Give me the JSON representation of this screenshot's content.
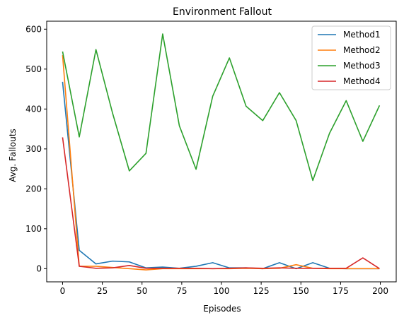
{
  "chart_data": {
    "type": "line",
    "title": "Environment Fallout",
    "xlabel": "Episodes",
    "ylabel": "Avg. Fallouts",
    "xlim": [
      -10,
      210
    ],
    "ylim": [
      -33,
      620
    ],
    "xticks": [
      0,
      25,
      50,
      75,
      100,
      125,
      150,
      175,
      200
    ],
    "yticks": [
      0,
      100,
      200,
      300,
      400,
      500,
      600
    ],
    "grid": false,
    "legend_position": "top-right",
    "x": [
      0,
      10.5,
      21,
      31.5,
      42,
      52.5,
      63,
      73.5,
      84,
      94.5,
      105,
      115.5,
      126,
      136.5,
      147,
      157.5,
      168,
      178.5,
      189,
      199.5
    ],
    "series": [
      {
        "name": "Method1",
        "color": "#1f77b4",
        "values": [
          468,
          46,
          12,
          19,
          17,
          2,
          4,
          1,
          6,
          15,
          2,
          2,
          0,
          15,
          0,
          15,
          1,
          0,
          0,
          0
        ]
      },
      {
        "name": "Method2",
        "color": "#ff7f0e",
        "values": [
          535,
          6,
          6,
          3,
          0,
          -3,
          0,
          0,
          0,
          0,
          0,
          1,
          0,
          1,
          10,
          1,
          0,
          0,
          0,
          0
        ]
      },
      {
        "name": "Method3",
        "color": "#2ca02c",
        "values": [
          544,
          330,
          549,
          389,
          245,
          289,
          588,
          358,
          249,
          432,
          528,
          407,
          371,
          441,
          371,
          221,
          339,
          421,
          319,
          409
        ]
      },
      {
        "name": "Method4",
        "color": "#d62728",
        "values": [
          329,
          6,
          1,
          2,
          8,
          1,
          1,
          1,
          1,
          0,
          1,
          2,
          1,
          2,
          1,
          1,
          1,
          1,
          27,
          0
        ]
      }
    ]
  }
}
